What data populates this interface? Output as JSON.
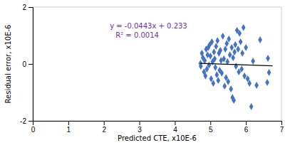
{
  "chart_data": {
    "type": "scatter",
    "xlabel": "Predicted CTE, x10E-6",
    "ylabel": "Residual error, x10E-6",
    "xlim": [
      0,
      7
    ],
    "ylim": [
      -2,
      2
    ],
    "xticks": [
      0,
      1,
      2,
      3,
      4,
      5,
      6,
      7
    ],
    "yticks": [
      -2,
      0,
      2
    ],
    "grid": false,
    "series": [
      {
        "type": "scatter",
        "marker": "diamond",
        "color": "#4472C4",
        "x": [
          4.72,
          4.73,
          4.76,
          4.79,
          4.82,
          4.84,
          4.86,
          4.88,
          4.9,
          4.92,
          4.94,
          4.96,
          4.98,
          5.0,
          5.02,
          5.04,
          5.06,
          5.08,
          5.1,
          5.12,
          5.14,
          5.16,
          5.18,
          5.2,
          5.22,
          5.24,
          5.26,
          5.28,
          5.3,
          5.32,
          5.35,
          5.38,
          5.4,
          5.42,
          5.44,
          5.46,
          5.48,
          5.5,
          5.52,
          5.55,
          5.58,
          5.6,
          5.62,
          5.64,
          5.66,
          5.68,
          5.7,
          5.72,
          5.75,
          5.78,
          5.8,
          5.82,
          5.85,
          5.88,
          5.9,
          5.93,
          5.96,
          6.0,
          6.05,
          6.1,
          6.15,
          6.2,
          6.3,
          6.4,
          6.6,
          6.62,
          6.65
        ],
        "values": [
          0.02,
          -0.08,
          0.38,
          0.22,
          -0.28,
          0.12,
          -0.42,
          0.52,
          -0.18,
          0.32,
          0.58,
          -0.04,
          0.68,
          0.28,
          -0.52,
          0.78,
          0.08,
          -0.68,
          0.42,
          0.18,
          -0.12,
          0.62,
          -0.38,
          0.82,
          -0.58,
          0.38,
          -0.22,
          0.48,
          0.12,
          -0.32,
          0.98,
          0.18,
          -0.78,
          0.52,
          -0.48,
          0.72,
          0.08,
          -0.62,
          0.88,
          0.32,
          -0.88,
          0.58,
          -1.18,
          0.22,
          -1.28,
          0.42,
          0.68,
          -0.08,
          1.18,
          0.52,
          -0.28,
          1.08,
          0.78,
          -0.18,
          0.38,
          1.28,
          -0.42,
          0.58,
          -0.52,
          -0.68,
          -1.5,
          0.1,
          -0.75,
          0.85,
          -0.65,
          0.2,
          -0.3
        ]
      },
      {
        "type": "line",
        "line_style": "solid",
        "color": "black",
        "x": [
          4.72,
          6.75
        ],
        "values": [
          0.023904,
          -0.066025
        ]
      }
    ],
    "annotations": [
      {
        "text": "y = -0.0443x + 0.233",
        "color": "#7030A0"
      },
      {
        "text": "R² = 0.0014",
        "color": "#7030A0"
      }
    ]
  }
}
